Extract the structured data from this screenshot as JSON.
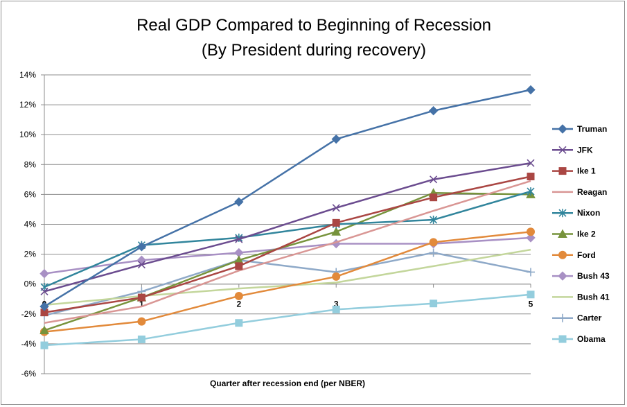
{
  "chart_data": {
    "type": "line",
    "title": [
      "Real GDP Compared to Beginning of Recession",
      "(By President during recovery)"
    ],
    "xlabel": "Quarter after recession end (per NBER)",
    "ylabel": "",
    "x": [
      0,
      1,
      2,
      3,
      4,
      5
    ],
    "ylim": [
      -6,
      14
    ],
    "yticks": [
      -6,
      -4,
      -2,
      0,
      2,
      4,
      6,
      8,
      10,
      12,
      14
    ],
    "ytick_labels": [
      "-6%",
      "-4%",
      "-2%",
      "0%",
      "2%",
      "4%",
      "6%",
      "8%",
      "10%",
      "12%",
      "14%"
    ],
    "grid": true,
    "legend_position": "right",
    "series": [
      {
        "name": "Truman",
        "color": "#4572A7",
        "marker": "diamond",
        "values": [
          -1.5,
          2.5,
          5.5,
          9.7,
          11.6,
          13.0
        ]
      },
      {
        "name": "JFK",
        "color": "#6B4C8F",
        "marker": "x",
        "values": [
          -0.5,
          1.3,
          3.0,
          5.1,
          7.0,
          8.1
        ]
      },
      {
        "name": "Ike 1",
        "color": "#AA4643",
        "marker": "square",
        "values": [
          -1.9,
          -0.9,
          1.2,
          4.1,
          5.8,
          7.2
        ]
      },
      {
        "name": "Reagan",
        "color": "#D99694",
        "marker": "none",
        "values": [
          -2.6,
          -1.5,
          0.9,
          2.8,
          4.9,
          6.9
        ]
      },
      {
        "name": "Nixon",
        "color": "#31859C",
        "marker": "star",
        "values": [
          -0.2,
          2.6,
          3.1,
          4.0,
          4.3,
          6.2
        ]
      },
      {
        "name": "Ike 2",
        "color": "#77933C",
        "marker": "triangle",
        "values": [
          -3.1,
          -0.9,
          1.6,
          3.5,
          6.1,
          6.0
        ]
      },
      {
        "name": "Ford",
        "color": "#E28A3B",
        "marker": "circle",
        "values": [
          -3.2,
          -2.5,
          -0.8,
          0.5,
          2.8,
          3.5
        ]
      },
      {
        "name": "Bush 43",
        "color": "#A890C4",
        "marker": "diamond",
        "values": [
          0.7,
          1.6,
          2.1,
          2.7,
          2.7,
          3.1
        ]
      },
      {
        "name": "Bush 41",
        "color": "#C3D69B",
        "marker": "none",
        "values": [
          -1.4,
          -0.8,
          -0.3,
          0.1,
          1.2,
          2.3
        ]
      },
      {
        "name": "Carter",
        "color": "#8EA9C8",
        "marker": "plus",
        "values": [
          -2.1,
          -0.5,
          1.6,
          0.8,
          2.1,
          0.8
        ]
      },
      {
        "name": "Obama",
        "color": "#93CDDD",
        "marker": "square",
        "values": [
          -4.1,
          -3.7,
          -2.6,
          -1.7,
          -1.3,
          -0.7
        ]
      }
    ]
  }
}
